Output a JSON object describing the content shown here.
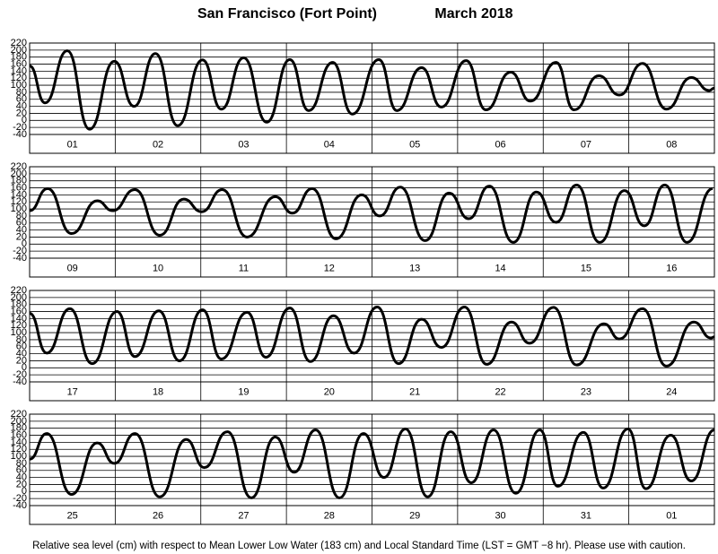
{
  "header": {
    "location": "San Francisco (Fort Point)",
    "date": "March   2018"
  },
  "footnote": "Relative sea level (cm) with respect to Mean Lower Low Water (183 cm) and Local Standard Time (LST = GMT −8 hr). Please use with caution.",
  "chart_data": [
    {
      "type": "line",
      "categories": [
        "01",
        "02",
        "03",
        "04",
        "05",
        "06",
        "07",
        "08"
      ],
      "xlim": [
        0,
        8
      ],
      "ylim": [
        -40,
        220
      ],
      "yticks": [
        -40,
        -20,
        0,
        20,
        40,
        60,
        80,
        100,
        120,
        140,
        160,
        180,
        200,
        220
      ],
      "grid": true,
      "x": [
        0,
        0.18,
        0.44,
        0.7,
        0.99,
        1.22,
        1.47,
        1.73,
        2.02,
        2.24,
        2.5,
        2.77,
        3.04,
        3.26,
        3.54,
        3.77,
        4.08,
        4.29,
        4.58,
        4.81,
        5.1,
        5.33,
        5.62,
        5.85,
        6.15,
        6.36,
        6.65,
        6.89,
        7.16,
        7.44,
        7.73,
        7.94,
        8.0
      ],
      "series": [
        {
          "color": "#000000",
          "values": [
            155,
            50,
            198,
            -25,
            168,
            40,
            190,
            -15,
            172,
            32,
            178,
            -5,
            173,
            28,
            165,
            18,
            173,
            28,
            150,
            38,
            170,
            30,
            137,
            55,
            165,
            30,
            127,
            72,
            162,
            32,
            122,
            85,
            92
          ]
        }
      ]
    },
    {
      "type": "line",
      "categories": [
        "09",
        "10",
        "11",
        "12",
        "13",
        "14",
        "15",
        "16"
      ],
      "xlim": [
        0,
        8
      ],
      "ylim": [
        -40,
        220
      ],
      "yticks": [
        -40,
        -20,
        0,
        20,
        40,
        60,
        80,
        100,
        120,
        140,
        160,
        180,
        200,
        220
      ],
      "grid": true,
      "x": [
        0,
        0.21,
        0.49,
        0.79,
        0.97,
        1.23,
        1.52,
        1.8,
        2.01,
        2.25,
        2.54,
        2.87,
        3.07,
        3.3,
        3.58,
        3.88,
        4.09,
        4.33,
        4.62,
        4.9,
        5.13,
        5.37,
        5.65,
        5.92,
        6.15,
        6.39,
        6.66,
        6.95,
        7.18,
        7.42,
        7.68,
        7.98
      ],
      "series": [
        {
          "color": "#000000",
          "values": [
            95,
            158,
            30,
            123,
            95,
            155,
            25,
            128,
            92,
            155,
            20,
            135,
            88,
            158,
            15,
            140,
            80,
            162,
            10,
            145,
            72,
            165,
            5,
            148,
            62,
            168,
            5,
            152,
            52,
            168,
            5,
            158
          ]
        }
      ]
    },
    {
      "type": "line",
      "categories": [
        "17",
        "18",
        "19",
        "20",
        "21",
        "22",
        "23",
        "24"
      ],
      "xlim": [
        0,
        8
      ],
      "ylim": [
        -40,
        220
      ],
      "yticks": [
        -40,
        -20,
        0,
        20,
        40,
        60,
        80,
        100,
        120,
        140,
        160,
        180,
        200,
        220
      ],
      "grid": true,
      "x": [
        0,
        0.2,
        0.47,
        0.73,
        1.02,
        1.23,
        1.51,
        1.75,
        2.02,
        2.24,
        2.54,
        2.76,
        3.04,
        3.28,
        3.55,
        3.79,
        4.06,
        4.31,
        4.58,
        4.81,
        5.08,
        5.34,
        5.63,
        5.84,
        6.12,
        6.39,
        6.71,
        6.89,
        7.16,
        7.44,
        7.76,
        7.96,
        8.0
      ],
      "series": [
        {
          "color": "#000000",
          "values": [
            155,
            42,
            168,
            12,
            160,
            32,
            162,
            20,
            165,
            25,
            158,
            30,
            170,
            18,
            148,
            42,
            173,
            12,
            138,
            58,
            173,
            10,
            130,
            70,
            172,
            8,
            125,
            82,
            168,
            5,
            130,
            85,
            88
          ]
        }
      ]
    },
    {
      "type": "line",
      "categories": [
        "25",
        "26",
        "27",
        "28",
        "29",
        "30",
        "31",
        "01"
      ],
      "xlim": [
        0,
        8
      ],
      "ylim": [
        -40,
        220
      ],
      "yticks": [
        -40,
        -20,
        0,
        20,
        40,
        60,
        80,
        100,
        120,
        140,
        160,
        180,
        200,
        220
      ],
      "grid": true,
      "x": [
        0,
        0.2,
        0.49,
        0.79,
        0.99,
        1.23,
        1.52,
        1.83,
        2.04,
        2.31,
        2.59,
        2.87,
        3.09,
        3.34,
        3.62,
        3.9,
        4.14,
        4.39,
        4.65,
        4.92,
        5.16,
        5.42,
        5.68,
        5.96,
        6.17,
        6.47,
        6.7,
        6.99,
        7.2,
        7.49,
        7.73,
        8.0
      ],
      "series": [
        {
          "color": "#000000",
          "values": [
            92,
            165,
            -8,
            138,
            80,
            165,
            -15,
            148,
            68,
            170,
            -18,
            155,
            55,
            175,
            -18,
            165,
            40,
            178,
            -15,
            170,
            25,
            175,
            -5,
            175,
            15,
            168,
            10,
            178,
            8,
            160,
            30,
            175
          ]
        }
      ]
    }
  ]
}
